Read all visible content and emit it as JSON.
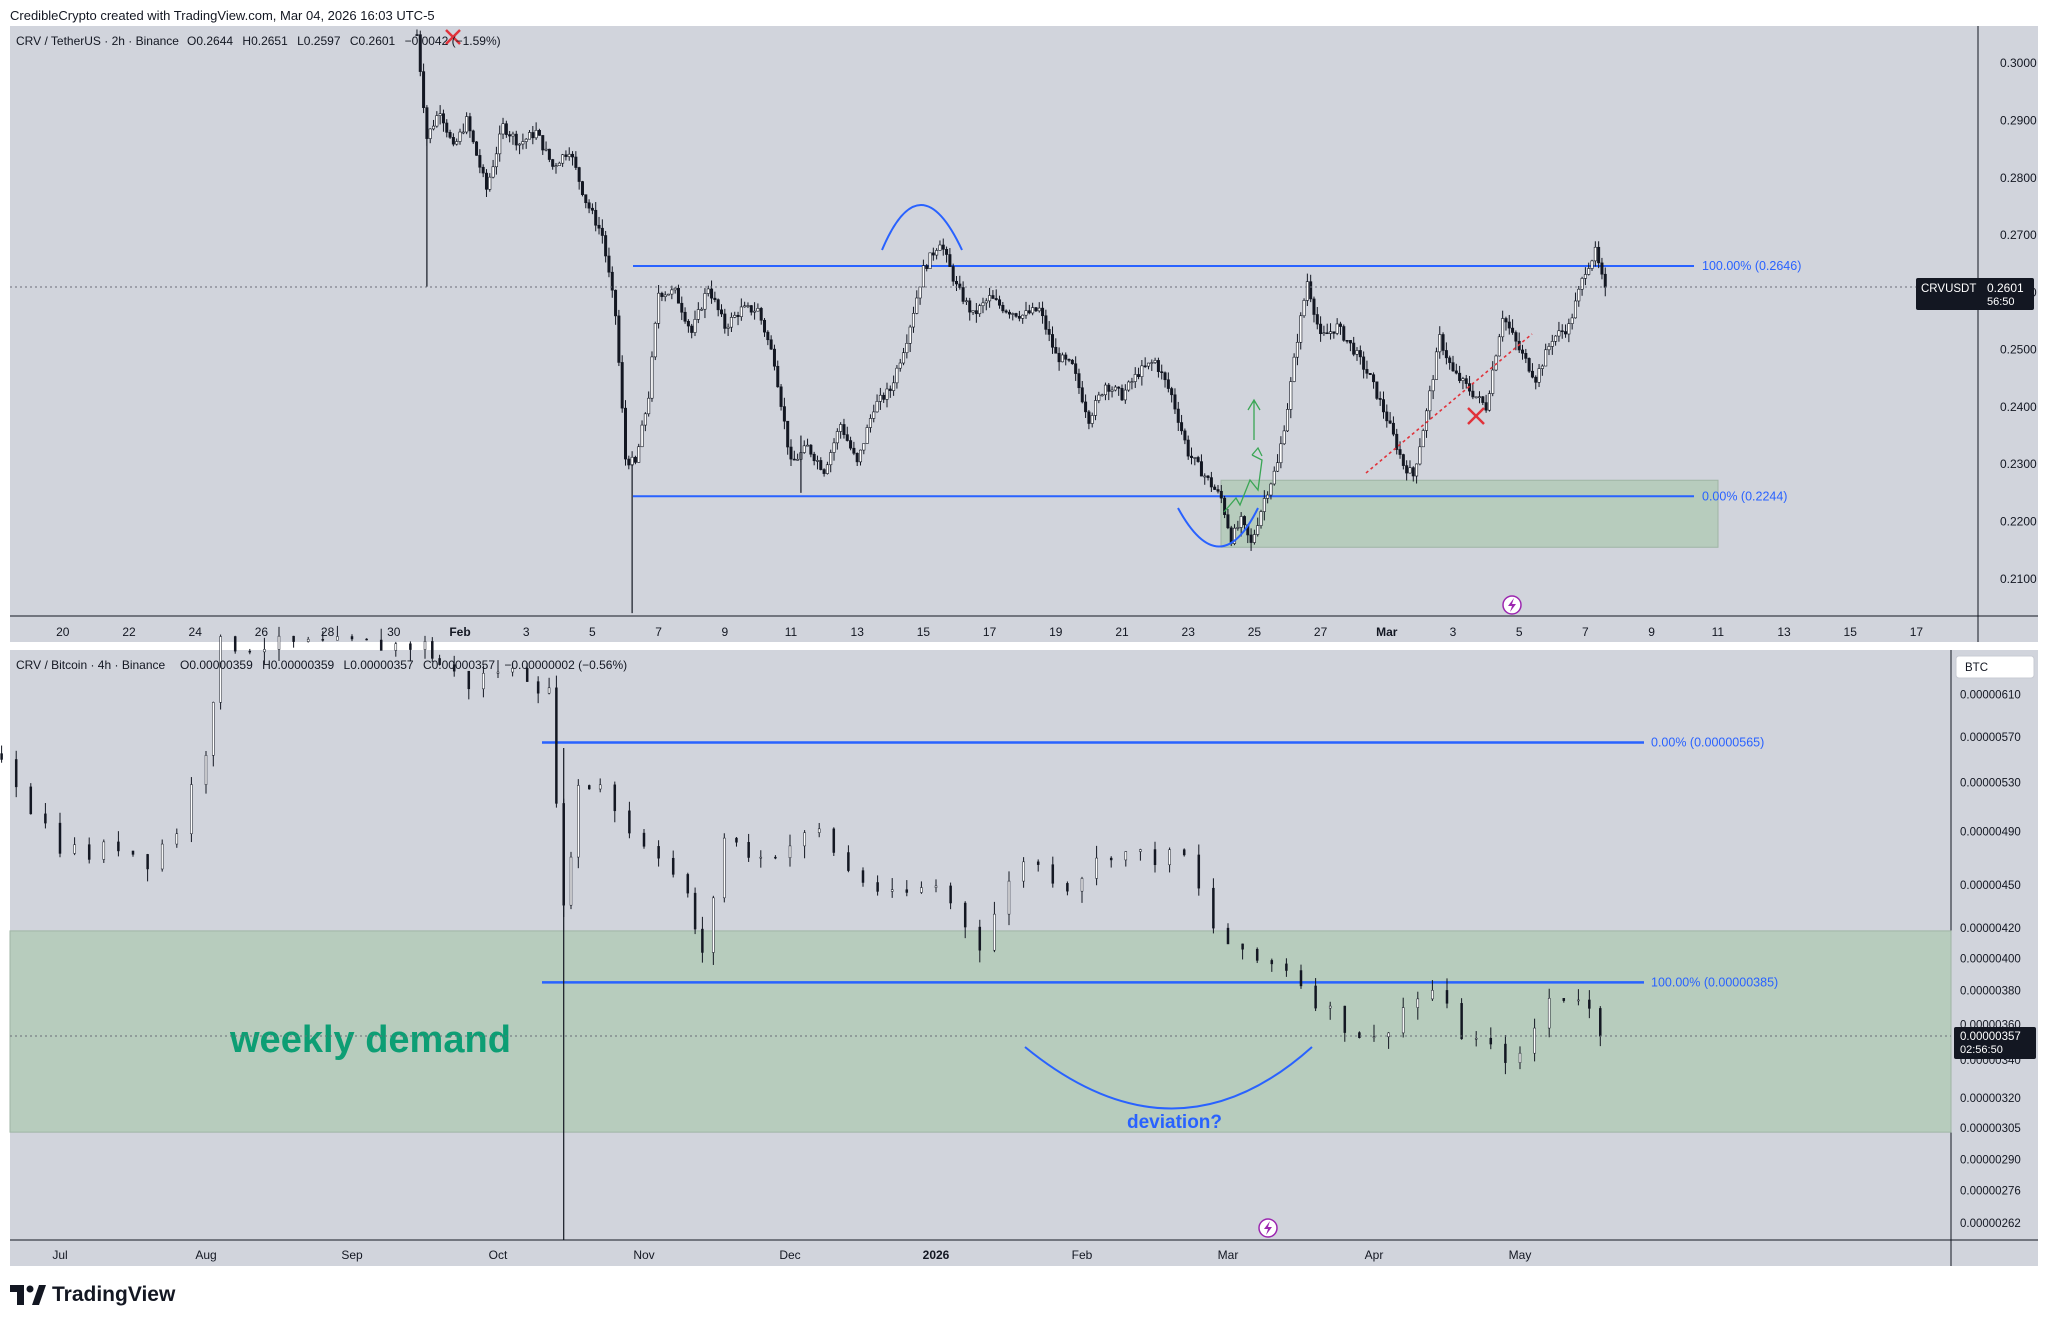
{
  "header": {
    "attribution": "CredibleCrypto created with TradingView.com, Mar 04, 2026 16:03 UTC-5"
  },
  "brand": {
    "name": "TradingView"
  },
  "colors": {
    "pane_bg": "#d1d4dc",
    "candle": "#131722",
    "level_line": "#2962ff",
    "level_text": "#2962ff",
    "zone_fill": "#b7ccbd",
    "annotation_green": "#0d9e74",
    "annotation_red": "#e0323a",
    "cross_red": "#e0323a"
  },
  "chart_data": [
    {
      "type": "candlestick",
      "symbol_line": {
        "prefix": "CRV / TetherUS · 2h · Binance",
        "o_label": "O",
        "o_value": "0.2644",
        "h_label": "H",
        "h_value": "0.2651",
        "l_label": "L",
        "l_value": "0.2597",
        "c_label": "C",
        "c_value": "0.2601",
        "change": "−0.0042 (−1.59%)"
      },
      "price_label": "CRVUSDT",
      "last_price": "0.2601",
      "countdown": "56:50",
      "y_ticks": [
        "0.3000",
        "0.2900",
        "0.2800",
        "0.2700",
        "0.2600",
        "0.2500",
        "0.2400",
        "0.2300",
        "0.2200",
        "0.2100"
      ],
      "y_tick_values": [
        0.3,
        0.29,
        0.28,
        0.27,
        0.26,
        0.25,
        0.24,
        0.23,
        0.22,
        0.21
      ],
      "ylim": [
        0.2035,
        0.3065
      ],
      "x_ticks": [
        "20",
        "22",
        "24",
        "26",
        "28",
        "30",
        "Feb",
        "3",
        "5",
        "7",
        "9",
        "11",
        "13",
        "15",
        "17",
        "19",
        "21",
        "23",
        "25",
        "27",
        "Mar",
        "3",
        "5",
        "7",
        "9",
        "11",
        "13",
        "15",
        "17"
      ],
      "x_tick_days": [
        -12,
        -10,
        -8,
        -6,
        -4,
        -2,
        0,
        2,
        4,
        6,
        8,
        10,
        12,
        14,
        16,
        18,
        20,
        22,
        24,
        26,
        28,
        30,
        32,
        34,
        36,
        38,
        40,
        42,
        44
      ],
      "fib_high": {
        "label": "100.00% (0.2646)",
        "value": 0.2646
      },
      "fib_low": {
        "label": "0.00% (0.2244)",
        "value": 0.2244
      },
      "demand_zone": {
        "top": 0.2272,
        "bottom": 0.2155
      },
      "price_path": [
        [
          -1.3,
          0.305
        ],
        [
          -1.0,
          0.287
        ],
        [
          -0.6,
          0.292
        ],
        [
          -0.2,
          0.285
        ],
        [
          0.2,
          0.29
        ],
        [
          0.8,
          0.278
        ],
        [
          1.3,
          0.289
        ],
        [
          1.8,
          0.286
        ],
        [
          2.3,
          0.288
        ],
        [
          2.8,
          0.282
        ],
        [
          3.3,
          0.285
        ],
        [
          3.8,
          0.276
        ],
        [
          4.3,
          0.27
        ],
        [
          4.7,
          0.256
        ],
        [
          5.0,
          0.231
        ],
        [
          5.3,
          0.23
        ],
        [
          5.7,
          0.242
        ],
        [
          6.0,
          0.26
        ],
        [
          6.5,
          0.26
        ],
        [
          7.0,
          0.253
        ],
        [
          7.5,
          0.261
        ],
        [
          8.0,
          0.254
        ],
        [
          8.5,
          0.257
        ],
        [
          9.0,
          0.257
        ],
        [
          9.5,
          0.248
        ],
        [
          10.0,
          0.23
        ],
        [
          10.5,
          0.233
        ],
        [
          11.0,
          0.229
        ],
        [
          11.5,
          0.237
        ],
        [
          12.0,
          0.23
        ],
        [
          12.5,
          0.24
        ],
        [
          13.0,
          0.243
        ],
        [
          13.5,
          0.252
        ],
        [
          14.0,
          0.264
        ],
        [
          14.5,
          0.269
        ],
        [
          15.0,
          0.261
        ],
        [
          15.5,
          0.256
        ],
        [
          16.0,
          0.259
        ],
        [
          16.5,
          0.257
        ],
        [
          17.0,
          0.256
        ],
        [
          17.5,
          0.257
        ],
        [
          18.0,
          0.249
        ],
        [
          18.5,
          0.247
        ],
        [
          19.0,
          0.238
        ],
        [
          19.5,
          0.244
        ],
        [
          20.0,
          0.242
        ],
        [
          20.5,
          0.246
        ],
        [
          21.0,
          0.248
        ],
        [
          21.5,
          0.242
        ],
        [
          22.0,
          0.232
        ],
        [
          22.5,
          0.228
        ],
        [
          23.0,
          0.224
        ],
        [
          23.3,
          0.217
        ],
        [
          23.6,
          0.22
        ],
        [
          23.9,
          0.216
        ],
        [
          24.3,
          0.224
        ],
        [
          24.7,
          0.23
        ],
        [
          25.0,
          0.24
        ],
        [
          25.3,
          0.252
        ],
        [
          25.6,
          0.262
        ],
        [
          26.0,
          0.252
        ],
        [
          26.5,
          0.254
        ],
        [
          27.0,
          0.25
        ],
        [
          27.5,
          0.245
        ],
        [
          28.0,
          0.238
        ],
        [
          28.5,
          0.23
        ],
        [
          28.8,
          0.228
        ],
        [
          29.2,
          0.239
        ],
        [
          29.6,
          0.252
        ],
        [
          30.0,
          0.246
        ],
        [
          30.5,
          0.243
        ],
        [
          31.0,
          0.24
        ],
        [
          31.5,
          0.256
        ],
        [
          32.0,
          0.25
        ],
        [
          32.5,
          0.245
        ],
        [
          33.0,
          0.252
        ],
        [
          33.5,
          0.254
        ],
        [
          34.0,
          0.264
        ],
        [
          34.3,
          0.267
        ],
        [
          34.6,
          0.2601
        ]
      ],
      "wicks": [
        [
          -1.0,
          0.288,
          0.261
        ],
        [
          5.2,
          0.23,
          0.204
        ],
        [
          10.3,
          0.235,
          0.225
        ]
      ],
      "note": "Horizontal range between fib levels; green demand zone below; blue arcs mark the top and the bottom; red crosses mark invalidation; dotted red trendline."
    },
    {
      "type": "candlestick",
      "symbol_line": {
        "prefix": "CRV / Bitcoin · 4h · Binance",
        "o_label": "O",
        "o_value": "0.00000359",
        "h_label": "H",
        "h_value": "0.00000359",
        "l_label": "L",
        "l_value": "0.00000357",
        "c_label": "C",
        "c_value": "0.00000357",
        "change": "−0.00000002 (−0.56%)"
      },
      "price_label": "BTC",
      "last_price": "0.00000357",
      "countdown": "02:56:50",
      "y_ticks": [
        "0.00000610",
        "0.00000570",
        "0.00000530",
        "0.00000490",
        "0.00000450",
        "0.00000420",
        "0.00000400",
        "0.00000380",
        "0.00000360",
        "0.00000340",
        "0.00000320",
        "0.00000305",
        "0.00000290",
        "0.00000276",
        "0.00000262"
      ],
      "y_tick_values": [
        6.1,
        5.7,
        5.3,
        4.9,
        4.5,
        4.2,
        4.0,
        3.8,
        3.6,
        3.4,
        3.2,
        3.05,
        2.9,
        2.76,
        2.62
      ],
      "y_scale_unit": "1e-6 BTC, log scale",
      "ylim": [
        2.55,
        6.55
      ],
      "x_ticks": [
        "Jul",
        "Aug",
        "Sep",
        "Oct",
        "Nov",
        "Dec",
        "2026",
        "Feb",
        "Mar",
        "Apr",
        "May"
      ],
      "x_tick_months": [
        0,
        1,
        2,
        3,
        4,
        5,
        6,
        7,
        8,
        9,
        10
      ],
      "fib_top": {
        "label": "0.00% (0.00000565)",
        "value": 5.65
      },
      "fib_bottom": {
        "label": "100.00% (0.00000385)",
        "value": 3.85
      },
      "demand_zone": {
        "label": "weekly demand",
        "top": 4.18,
        "bottom": 3.03
      },
      "deviation_label": "deviation?",
      "price_path": [
        [
          -0.4,
          5.55
        ],
        [
          -0.2,
          5.1
        ],
        [
          0.0,
          4.8
        ],
        [
          0.2,
          4.72
        ],
        [
          0.4,
          4.8
        ],
        [
          0.6,
          4.68
        ],
        [
          0.8,
          4.92
        ],
        [
          1.0,
          5.6
        ],
        [
          1.1,
          6.6
        ],
        [
          2.5,
          6.6
        ],
        [
          2.6,
          6.4
        ],
        [
          2.8,
          6.2
        ],
        [
          3.0,
          6.35
        ],
        [
          3.2,
          6.3
        ],
        [
          3.35,
          6.1
        ],
        [
          3.45,
          4.3
        ],
        [
          3.55,
          5.25
        ],
        [
          3.7,
          5.3
        ],
        [
          3.9,
          4.9
        ],
        [
          4.1,
          4.75
        ],
        [
          4.3,
          4.4
        ],
        [
          4.4,
          4.0
        ],
        [
          4.55,
          4.85
        ],
        [
          4.8,
          4.7
        ],
        [
          5.0,
          4.8
        ],
        [
          5.2,
          4.9
        ],
        [
          5.4,
          4.6
        ],
        [
          5.7,
          4.4
        ],
        [
          6.0,
          4.5
        ],
        [
          6.3,
          4.1
        ],
        [
          6.6,
          4.7
        ],
        [
          6.9,
          4.5
        ],
        [
          7.2,
          4.75
        ],
        [
          7.5,
          4.7
        ],
        [
          7.7,
          4.7
        ],
        [
          7.9,
          4.2
        ],
        [
          8.1,
          4.0
        ],
        [
          8.4,
          3.95
        ],
        [
          8.6,
          3.75
        ],
        [
          8.8,
          3.6
        ],
        [
          9.0,
          3.5
        ],
        [
          9.2,
          3.7
        ],
        [
          9.4,
          3.8
        ],
        [
          9.6,
          3.55
        ],
        [
          9.8,
          3.45
        ],
        [
          10.0,
          3.4
        ],
        [
          10.2,
          3.75
        ],
        [
          10.4,
          3.78
        ],
        [
          10.55,
          3.57
        ]
      ],
      "wicks": [
        [
          3.45,
          5.6,
          2.55
        ]
      ],
      "note": "Price dipped into the weekly demand zone below the 100% level; blue arc marks a possible deviation."
    }
  ]
}
